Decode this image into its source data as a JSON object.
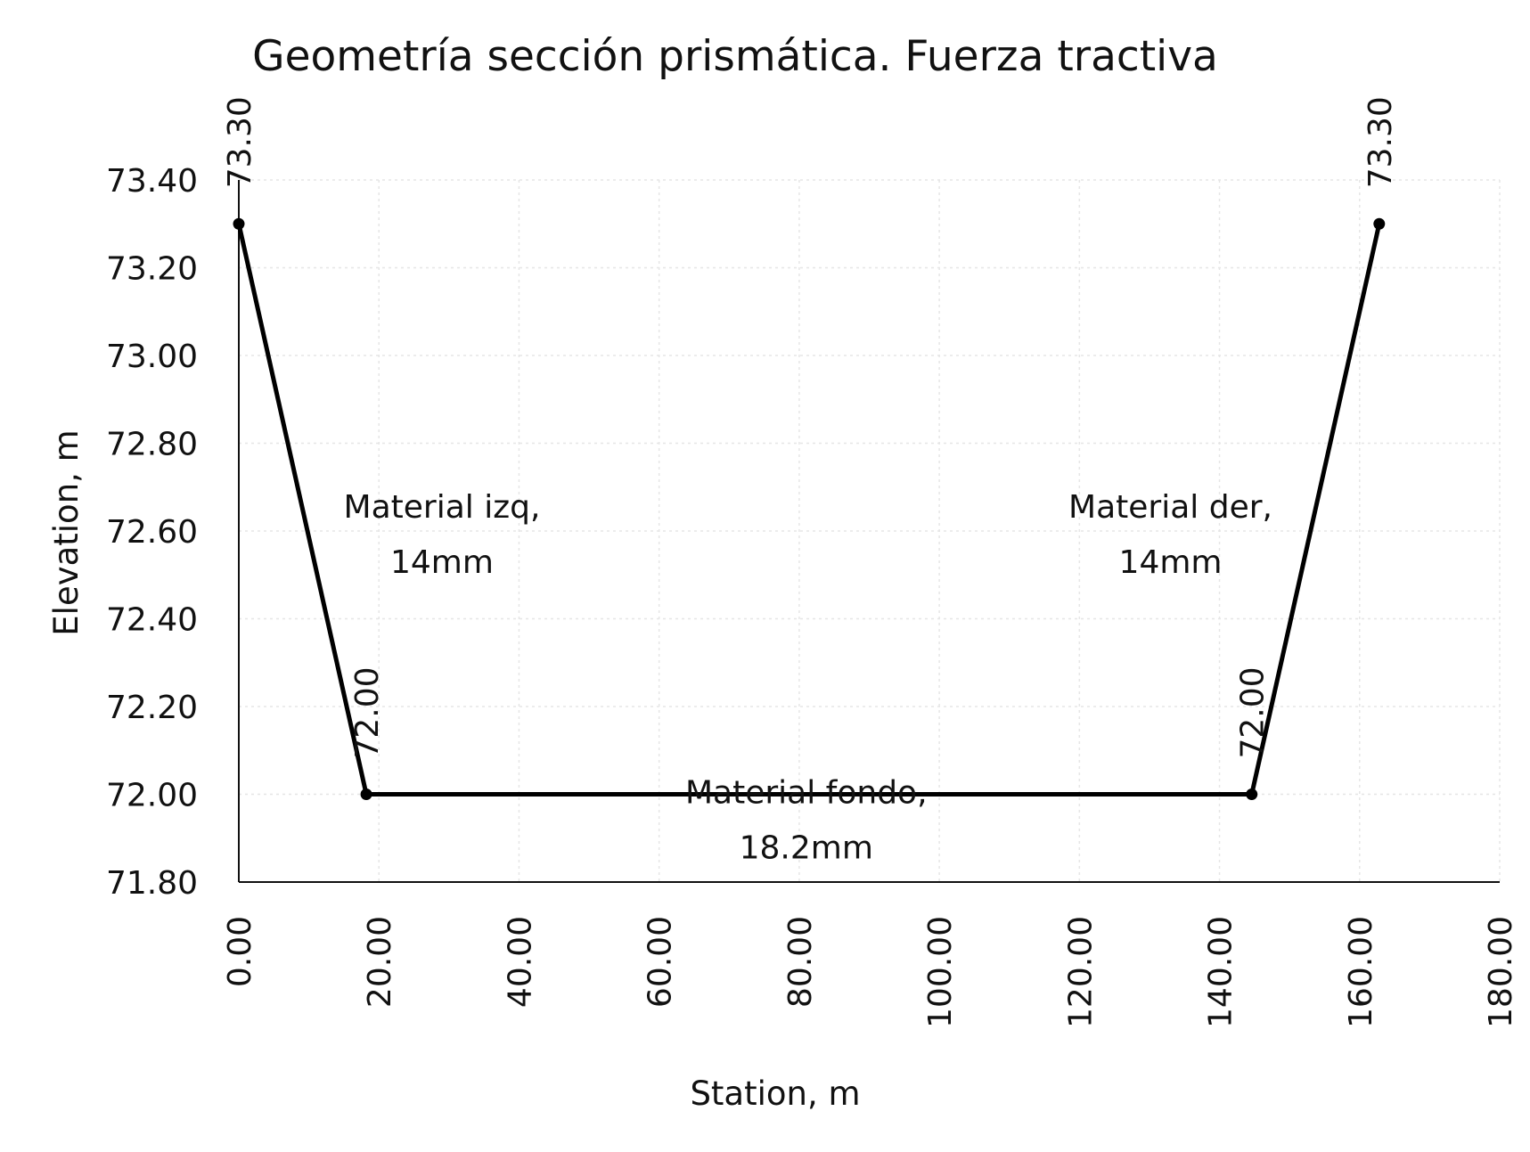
{
  "chart_data": {
    "type": "line",
    "title": "Geometría sección prismática. Fuerza tractiva",
    "xlabel": "Station, m",
    "ylabel": "Elevation, m",
    "xlim": [
      0,
      180
    ],
    "ylim": [
      71.8,
      73.4
    ],
    "x_ticks": [
      "0.00",
      "20.00",
      "40.00",
      "60.00",
      "80.00",
      "100.00",
      "120.00",
      "140.00",
      "160.00",
      "180.00"
    ],
    "x_tick_values": [
      0,
      20,
      40,
      60,
      80,
      100,
      120,
      140,
      160,
      180
    ],
    "y_ticks": [
      "71.80",
      "72.00",
      "72.20",
      "72.40",
      "72.60",
      "72.80",
      "73.00",
      "73.20",
      "73.40"
    ],
    "y_tick_values": [
      71.8,
      72.0,
      72.2,
      72.4,
      72.6,
      72.8,
      73.0,
      73.2,
      73.4
    ],
    "grid": true,
    "series": [
      {
        "x": [
          0,
          18.2,
          144.6,
          162.8
        ],
        "y": [
          73.3,
          72.0,
          72.0,
          73.3
        ],
        "labels": [
          "73.30",
          "72.00",
          "72.00",
          "73.30"
        ],
        "color": "#000000"
      }
    ],
    "annotations": [
      {
        "lines": [
          "Material izq,",
          "14mm"
        ],
        "x": 29,
        "y": 72.63
      },
      {
        "lines": [
          "Material der,",
          "14mm"
        ],
        "x": 133,
        "y": 72.63
      },
      {
        "lines": [
          "Material fondo,",
          "18.2mm"
        ],
        "x": 81,
        "y": 71.98
      }
    ]
  }
}
